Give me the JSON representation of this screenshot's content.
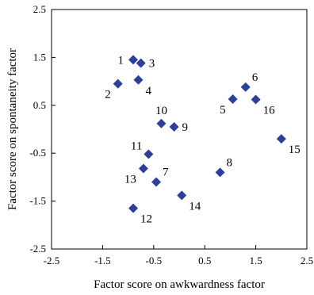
{
  "chart_data": {
    "type": "scatter",
    "title": "",
    "xlabel": "Factor score on awkwardness factor",
    "ylabel": "Factor score on spontaneity factor",
    "xlim": [
      -2.5,
      2.5
    ],
    "ylim": [
      -2.5,
      2.5
    ],
    "xticks": [
      "-2.5",
      "-1.5",
      "-0.5",
      "0.5",
      "1.5",
      "2.5"
    ],
    "yticks": [
      "2.5",
      "1.5",
      "0.5",
      "-0.5",
      "-1.5",
      "-2.5"
    ],
    "grid": false,
    "marker": "diamond",
    "marker_color": "#2e3f99",
    "points": [
      {
        "label": "1",
        "x": -0.9,
        "y": 1.45,
        "label_pos": "left"
      },
      {
        "label": "2",
        "x": -1.2,
        "y": 0.95,
        "label_pos": "below-left"
      },
      {
        "label": "3",
        "x": -0.75,
        "y": 1.38,
        "label_pos": "right"
      },
      {
        "label": "4",
        "x": -0.8,
        "y": 1.03,
        "label_pos": "below-right"
      },
      {
        "label": "5",
        "x": 1.05,
        "y": 0.63,
        "label_pos": "below-left"
      },
      {
        "label": "6",
        "x": 1.3,
        "y": 0.88,
        "label_pos": "above-right"
      },
      {
        "label": "7",
        "x": -0.45,
        "y": -1.1,
        "label_pos": "above-right"
      },
      {
        "label": "8",
        "x": 0.8,
        "y": -0.9,
        "label_pos": "above-right"
      },
      {
        "label": "9",
        "x": -0.1,
        "y": 0.05,
        "label_pos": "right"
      },
      {
        "label": "10",
        "x": -0.35,
        "y": 0.12,
        "label_pos": "above"
      },
      {
        "label": "11",
        "x": -0.6,
        "y": -0.52,
        "label_pos": "above-left"
      },
      {
        "label": "12",
        "x": -0.9,
        "y": -1.65,
        "label_pos": "below-right"
      },
      {
        "label": "13",
        "x": -0.7,
        "y": -0.82,
        "label_pos": "below-left"
      },
      {
        "label": "14",
        "x": 0.05,
        "y": -1.38,
        "label_pos": "below-right"
      },
      {
        "label": "15",
        "x": 2.0,
        "y": -0.2,
        "label_pos": "below-right"
      },
      {
        "label": "16",
        "x": 1.5,
        "y": 0.62,
        "label_pos": "below-right"
      }
    ]
  }
}
